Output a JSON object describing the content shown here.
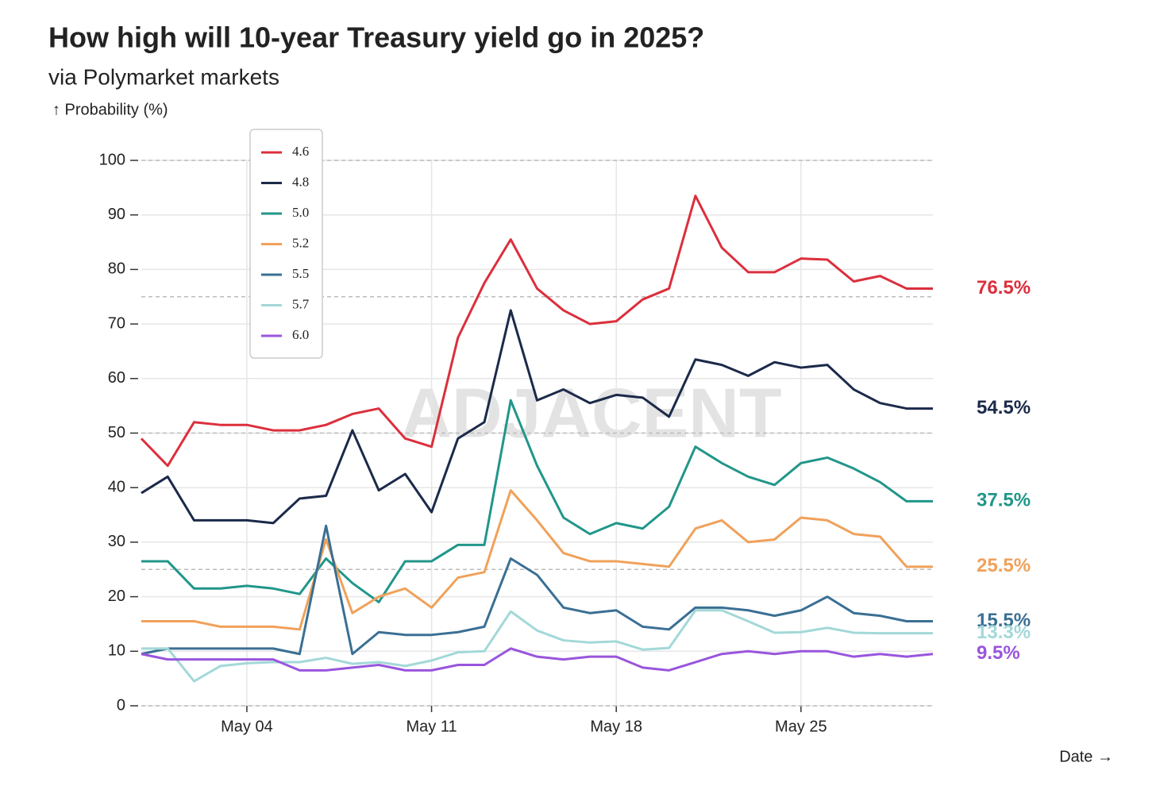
{
  "chart_data": {
    "type": "line",
    "title": "How high will 10-year Treasury yield go in 2025?",
    "subtitle": "via Polymarket markets",
    "y_label": "↑ Probability (%)",
    "x_label": "Date →",
    "watermark": "ADJACENT",
    "x": [
      "04-30",
      "05-01",
      "05-02",
      "05-03",
      "05-04",
      "05-05",
      "05-06",
      "05-07",
      "05-08",
      "05-09",
      "05-10",
      "05-11",
      "05-12",
      "05-13",
      "05-14",
      "05-15",
      "05-16",
      "05-17",
      "05-18",
      "05-19",
      "05-20",
      "05-21",
      "05-22",
      "05-23",
      "05-24",
      "05-25",
      "05-26",
      "05-27",
      "05-28",
      "05-29",
      "05-30"
    ],
    "xlim": [
      "04-30",
      "05-30"
    ],
    "xticks": [
      {
        "value": "05-04",
        "label": "May 04"
      },
      {
        "value": "05-11",
        "label": "May 11"
      },
      {
        "value": "05-18",
        "label": "May 18"
      },
      {
        "value": "05-25",
        "label": "May 25"
      }
    ],
    "ylim": [
      0,
      100
    ],
    "yticks": [
      0,
      10,
      20,
      30,
      40,
      50,
      60,
      70,
      80,
      90,
      100
    ],
    "reference_lines": [
      0,
      25,
      50,
      75,
      100
    ],
    "grid": true,
    "legend": "top-left",
    "series": [
      {
        "name": "4.6",
        "color": "#dc2f3c",
        "end_label": "76.5%",
        "values": [
          49,
          44,
          52,
          51.5,
          51.5,
          50.5,
          50.5,
          51.5,
          53.5,
          54.5,
          49,
          47.5,
          67.5,
          77.5,
          85.5,
          76.5,
          72.5,
          70,
          70.5,
          74.5,
          76.5,
          93.5,
          84,
          79.5,
          79.5,
          82,
          81.8,
          77.8,
          78.8,
          76.5,
          76.5
        ]
      },
      {
        "name": "4.8",
        "color": "#1b2a4a",
        "end_label": "54.5%",
        "values": [
          39,
          42,
          34,
          34,
          34,
          33.5,
          38,
          38.5,
          50.5,
          39.5,
          42.5,
          35.5,
          49,
          52,
          72.5,
          56,
          58,
          55.5,
          57,
          56.5,
          53,
          63.5,
          62.5,
          60.5,
          63,
          62,
          62.5,
          58,
          55.5,
          54.5,
          54.5
        ]
      },
      {
        "name": "5.0",
        "color": "#21968a",
        "end_label": "37.5%",
        "values": [
          26.5,
          26.5,
          21.5,
          21.5,
          22,
          21.5,
          20.5,
          27,
          22.5,
          19,
          26.5,
          26.5,
          29.5,
          29.5,
          56,
          44,
          34.5,
          31.5,
          33.5,
          32.5,
          36.5,
          47.5,
          44.5,
          42,
          40.5,
          44.5,
          45.5,
          43.5,
          41,
          37.5,
          37.5
        ]
      },
      {
        "name": "5.2",
        "color": "#f0a15a",
        "end_label": "25.5%",
        "values": [
          15.5,
          15.5,
          15.5,
          14.5,
          14.5,
          14.5,
          14,
          30.5,
          17,
          20,
          21.5,
          18,
          23.5,
          24.5,
          39.5,
          34,
          28,
          26.5,
          26.5,
          26,
          25.5,
          32.5,
          34,
          30,
          30.5,
          34.5,
          34,
          31.5,
          31,
          25.5,
          25.5
        ]
      },
      {
        "name": "5.5",
        "color": "#3a6f94",
        "end_label": "15.5%",
        "values": [
          9.5,
          10.5,
          10.5,
          10.5,
          10.5,
          10.5,
          9.5,
          33,
          9.5,
          13.5,
          13,
          13,
          13.5,
          14.5,
          27,
          24,
          18,
          17,
          17.5,
          14.5,
          14,
          18,
          18,
          17.5,
          16.5,
          17.5,
          20,
          17,
          16.5,
          15.5,
          15.5
        ]
      },
      {
        "name": "5.7",
        "color": "#a3d8d8",
        "end_label": "13.3%",
        "values": [
          10.5,
          10.5,
          4.5,
          7.3,
          7.8,
          8,
          8,
          8.8,
          7.7,
          8,
          7.3,
          8.3,
          9.8,
          10,
          17.3,
          13.8,
          12,
          11.6,
          11.8,
          10.3,
          10.6,
          17.5,
          17.5,
          15.5,
          13.4,
          13.5,
          14.3,
          13.4,
          13.3,
          13.3,
          13.3
        ]
      },
      {
        "name": "6.0",
        "color": "#9955dd",
        "end_label": "9.5%",
        "values": [
          9.5,
          8.5,
          8.5,
          8.5,
          8.5,
          8.5,
          6.5,
          6.5,
          7,
          7.5,
          6.5,
          6.5,
          7.5,
          7.5,
          10.5,
          9,
          8.5,
          9,
          9,
          7,
          6.5,
          8,
          9.5,
          10,
          9.5,
          10,
          10,
          9,
          9.5,
          9,
          9.5
        ]
      }
    ]
  }
}
